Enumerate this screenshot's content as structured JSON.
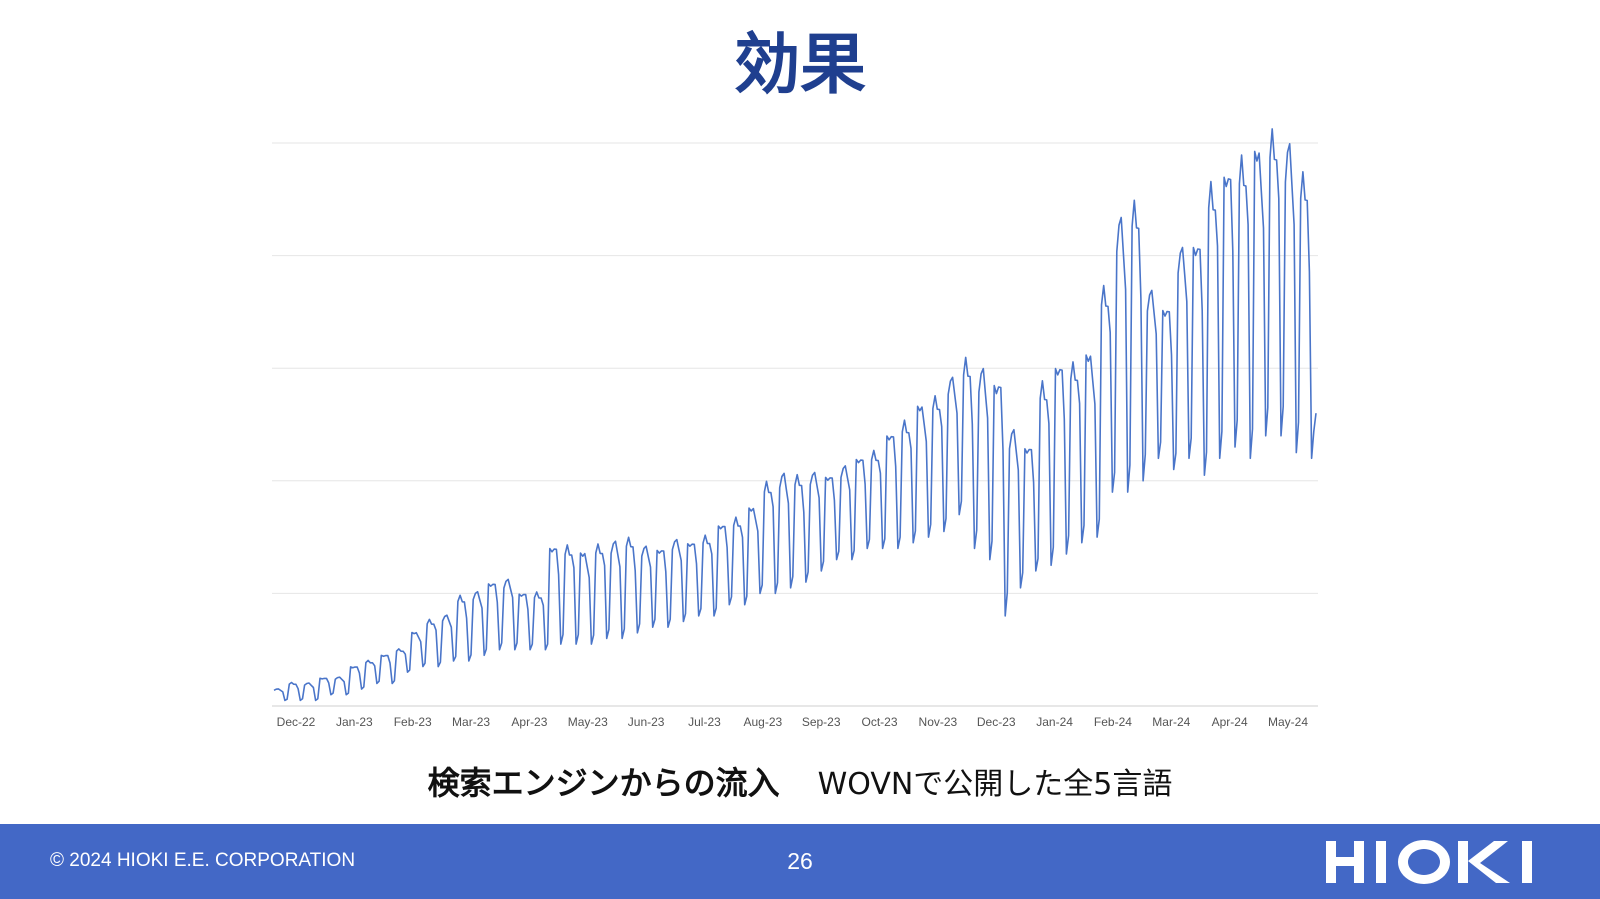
{
  "slide": {
    "title": "効果",
    "caption_main": "検索エンジンからの流入",
    "caption_sub": "WOVNで公開した全5言語"
  },
  "footer": {
    "copyright": "© 2024  HIOKI E.E. CORPORATION",
    "page_number": "26",
    "logo_text": "HIOKI"
  },
  "colors": {
    "title": "#1f3f8f",
    "line": "#4a75c9",
    "footer_bg": "#4368c6",
    "gridline": "#e6e6e6"
  },
  "chart_data": {
    "type": "line",
    "title": "",
    "xlabel": "",
    "ylabel": "",
    "y_axis_labels_shown": false,
    "grid": "horizontal",
    "ylim": [
      0,
      100
    ],
    "x_tick_labels": [
      "Dec-22",
      "Jan-23",
      "Feb-23",
      "Mar-23",
      "Apr-23",
      "May-23",
      "Jun-23",
      "Jul-23",
      "Aug-23",
      "Sep-23",
      "Oct-23",
      "Nov-23",
      "Dec-23",
      "Jan-24",
      "Feb-24",
      "Mar-24",
      "Apr-24",
      "May-24"
    ],
    "note_values": "Daily relative values; y-axis scale not printed, normalized 0-100 (100 = top gridline). Estimated weekly peaks and troughs.",
    "series": [
      {
        "peaks": [
          3,
          4,
          4,
          5,
          5,
          7,
          8,
          9,
          10,
          13,
          15,
          16,
          19,
          20,
          22,
          22,
          20,
          20,
          28,
          28,
          27,
          28,
          29,
          29,
          28,
          28,
          29,
          29,
          30,
          32,
          33,
          35,
          39,
          41,
          40,
          41,
          41,
          42,
          44,
          45,
          48,
          50,
          53,
          54,
          58,
          60,
          59,
          58,
          48,
          46,
          57,
          60,
          60,
          62,
          73,
          86,
          87,
          73,
          71,
          80,
          82,
          92,
          94,
          96,
          98,
          100,
          99,
          92
        ],
        "troughs": [
          1,
          1,
          1,
          2,
          2,
          3,
          4,
          4,
          6,
          7,
          7,
          8,
          8,
          9,
          10,
          10,
          10,
          10,
          11,
          11,
          11,
          12,
          12,
          13,
          14,
          14,
          15,
          16,
          16,
          18,
          18,
          20,
          20,
          21,
          22,
          24,
          26,
          26,
          28,
          28,
          28,
          29,
          30,
          31,
          34,
          28,
          26,
          16,
          21,
          24,
          25,
          27,
          29,
          30,
          38,
          38,
          40,
          44,
          42,
          44,
          41,
          44,
          46,
          44,
          48,
          48,
          45,
          44
        ]
      }
    ]
  }
}
